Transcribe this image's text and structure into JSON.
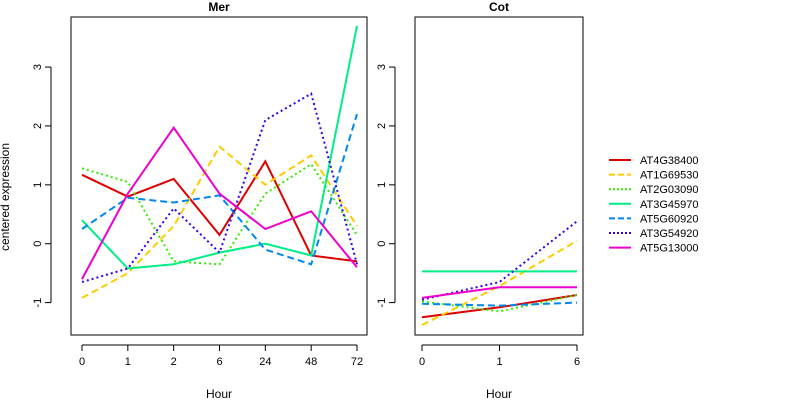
{
  "chart_data": {
    "type": "line",
    "ylabel": "centered expression",
    "ylim": [
      -1.55,
      3.85
    ],
    "yticks": [
      -1,
      0,
      1,
      2,
      3
    ],
    "panels": [
      {
        "title": "Mer",
        "xlabel": "Hour",
        "categories": [
          "0",
          "1",
          "2",
          "6",
          "24",
          "48",
          "72"
        ],
        "series": [
          {
            "name": "AT4G38400",
            "values": [
              1.17,
              0.8,
              1.1,
              0.15,
              1.4,
              -0.2,
              -0.3
            ]
          },
          {
            "name": "AT1G69530",
            "values": [
              -0.92,
              -0.5,
              0.3,
              1.65,
              1.0,
              1.5,
              0.3
            ]
          },
          {
            "name": "AT2G03090",
            "values": [
              1.28,
              1.05,
              -0.3,
              -0.35,
              0.85,
              1.35,
              0.15
            ]
          },
          {
            "name": "AT3G45970",
            "values": [
              0.4,
              -0.42,
              -0.35,
              -0.15,
              0.0,
              -0.2,
              3.7
            ]
          },
          {
            "name": "AT5G60920",
            "values": [
              0.25,
              0.78,
              0.7,
              0.82,
              -0.1,
              -0.35,
              2.2
            ]
          },
          {
            "name": "AT3G54920",
            "values": [
              -0.65,
              -0.42,
              0.6,
              -0.15,
              2.1,
              2.55,
              -0.35
            ]
          },
          {
            "name": "AT5G13000",
            "values": [
              -0.6,
              0.85,
              1.97,
              0.85,
              0.25,
              0.55,
              -0.4
            ]
          }
        ]
      },
      {
        "title": "Cot",
        "xlabel": "Hour",
        "categories": [
          "0",
          "1",
          "6"
        ],
        "series": [
          {
            "name": "AT4G38400",
            "values": [
              -1.25,
              -1.08,
              -0.87
            ]
          },
          {
            "name": "AT1G69530",
            "values": [
              -1.38,
              -0.72,
              0.05
            ]
          },
          {
            "name": "AT2G03090",
            "values": [
              -0.98,
              -1.15,
              -0.87
            ]
          },
          {
            "name": "AT3G45970",
            "values": [
              -0.47,
              -0.47,
              -0.47
            ]
          },
          {
            "name": "AT5G60920",
            "values": [
              -1.02,
              -1.05,
              -1.0
            ]
          },
          {
            "name": "AT3G54920",
            "values": [
              -0.95,
              -0.65,
              0.38
            ]
          },
          {
            "name": "AT5G13000",
            "values": [
              -0.92,
              -0.74,
              -0.74
            ]
          }
        ]
      }
    ],
    "legend": {
      "placement": "right",
      "entries": [
        {
          "name": "AT4G38400",
          "color": "#dd0000",
          "dash": "solid"
        },
        {
          "name": "AT1G69530",
          "color": "#ffcc00",
          "dash": "dashed"
        },
        {
          "name": "AT2G03090",
          "color": "#33ee00",
          "dash": "dotted"
        },
        {
          "name": "AT3G45970",
          "color": "#00ee88",
          "dash": "solid"
        },
        {
          "name": "AT5G60920",
          "color": "#0088ee",
          "dash": "dashed"
        },
        {
          "name": "AT3G54920",
          "color": "#3300ee",
          "dash": "dotted"
        },
        {
          "name": "AT5G13000",
          "color": "#ee00cc",
          "dash": "solid"
        }
      ]
    }
  }
}
